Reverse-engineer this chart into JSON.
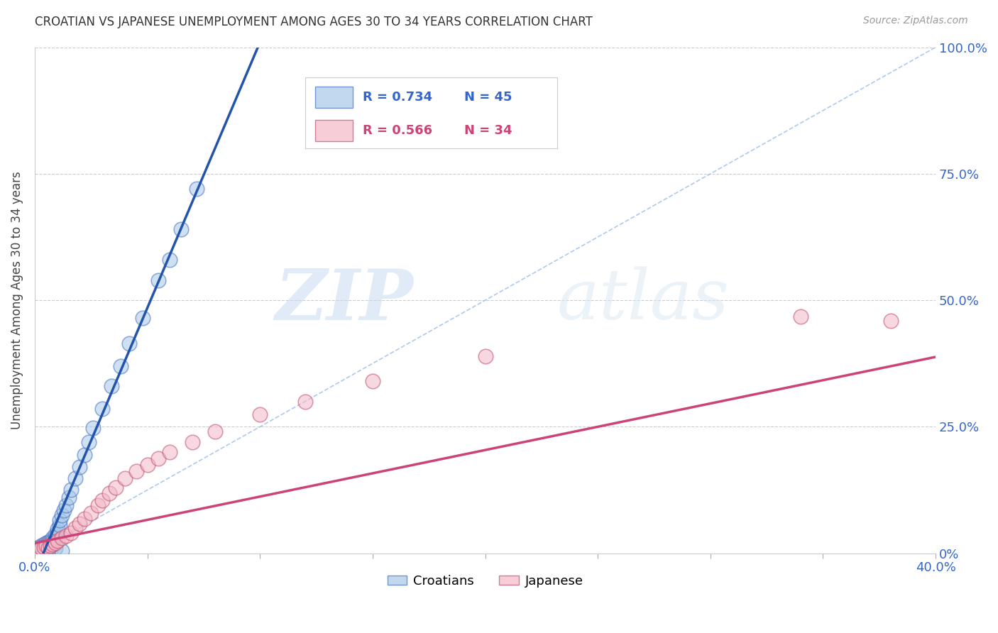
{
  "title": "CROATIAN VS JAPANESE UNEMPLOYMENT AMONG AGES 30 TO 34 YEARS CORRELATION CHART",
  "source": "Source: ZipAtlas.com",
  "ylabel": "Unemployment Among Ages 30 to 34 years",
  "xlim": [
    0,
    0.4
  ],
  "ylim": [
    0,
    1.0
  ],
  "xtick_positions": [
    0.0,
    0.05,
    0.1,
    0.15,
    0.2,
    0.25,
    0.3,
    0.35,
    0.4
  ],
  "xtick_labels": [
    "0.0%",
    "",
    "",
    "",
    "",
    "",
    "",
    "",
    "40.0%"
  ],
  "ytick_positions": [
    0.0,
    0.25,
    0.5,
    0.75,
    1.0
  ],
  "ytick_labels_right": [
    "0%",
    "25.0%",
    "50.0%",
    "75.0%",
    "100.0%"
  ],
  "croatian_fill_color": "#a8c8e8",
  "croatian_edge_color": "#4472c4",
  "japanese_fill_color": "#f4b8c8",
  "japanese_edge_color": "#c05070",
  "croatian_line_color": "#2255aa",
  "japanese_line_color": "#cc4477",
  "diagonal_color": "#99bbee",
  "legend_R_croatian": "R = 0.734",
  "legend_N_croatian": "N = 45",
  "legend_R_japanese": "R = 0.566",
  "legend_N_japanese": "N = 34",
  "legend_text_color_blue": "#3366cc",
  "legend_text_color_pink": "#cc4477",
  "watermark_zip": "ZIP",
  "watermark_atlas": "atlas",
  "background_color": "#ffffff",
  "grid_color": "#cccccc",
  "cro_slope": 10.5,
  "cro_intercept": -0.04,
  "jap_slope": 0.92,
  "jap_intercept": 0.02,
  "croatian_x": [
    0.001,
    0.002,
    0.002,
    0.003,
    0.003,
    0.004,
    0.004,
    0.005,
    0.005,
    0.006,
    0.006,
    0.007,
    0.007,
    0.008,
    0.008,
    0.009,
    0.009,
    0.01,
    0.01,
    0.011,
    0.011,
    0.012,
    0.013,
    0.014,
    0.015,
    0.016,
    0.018,
    0.02,
    0.022,
    0.024,
    0.026,
    0.03,
    0.034,
    0.038,
    0.042,
    0.048,
    0.055,
    0.06,
    0.065,
    0.072,
    0.003,
    0.005,
    0.007,
    0.009,
    0.012
  ],
  "croatian_y": [
    0.005,
    0.008,
    0.012,
    0.01,
    0.015,
    0.008,
    0.018,
    0.012,
    0.02,
    0.015,
    0.022,
    0.025,
    0.018,
    0.03,
    0.025,
    0.032,
    0.038,
    0.042,
    0.048,
    0.055,
    0.065,
    0.075,
    0.085,
    0.095,
    0.11,
    0.125,
    0.148,
    0.17,
    0.195,
    0.22,
    0.248,
    0.285,
    0.33,
    0.37,
    0.415,
    0.465,
    0.54,
    0.58,
    0.64,
    0.72,
    0.005,
    0.008,
    0.005,
    0.01,
    0.005
  ],
  "japanese_x": [
    0.001,
    0.002,
    0.003,
    0.004,
    0.005,
    0.006,
    0.007,
    0.008,
    0.009,
    0.01,
    0.012,
    0.014,
    0.016,
    0.018,
    0.02,
    0.022,
    0.025,
    0.028,
    0.03,
    0.033,
    0.036,
    0.04,
    0.045,
    0.05,
    0.055,
    0.06,
    0.07,
    0.08,
    0.1,
    0.12,
    0.15,
    0.2,
    0.34,
    0.38
  ],
  "japanese_y": [
    0.005,
    0.008,
    0.01,
    0.012,
    0.015,
    0.01,
    0.015,
    0.018,
    0.02,
    0.025,
    0.03,
    0.035,
    0.04,
    0.05,
    0.058,
    0.068,
    0.08,
    0.095,
    0.105,
    0.118,
    0.13,
    0.148,
    0.162,
    0.175,
    0.188,
    0.2,
    0.22,
    0.24,
    0.275,
    0.3,
    0.34,
    0.39,
    0.468,
    0.46
  ]
}
